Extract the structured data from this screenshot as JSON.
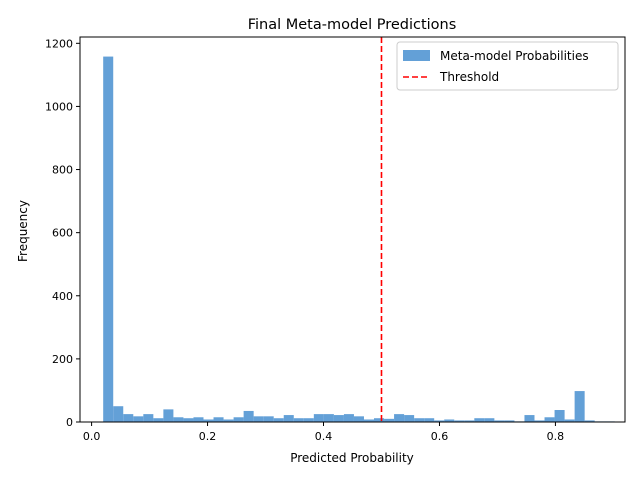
{
  "chart_data": {
    "type": "bar",
    "title": "Final Meta-model Predictions",
    "xlabel": "Predicted Probability",
    "ylabel": "Frequency",
    "xlim": [
      -0.02,
      0.92
    ],
    "ylim": [
      0,
      1220
    ],
    "xticks": [
      0.0,
      0.2,
      0.4,
      0.6,
      0.8
    ],
    "xtick_labels": [
      "0.0",
      "0.2",
      "0.4",
      "0.6",
      "0.8"
    ],
    "yticks": [
      0,
      200,
      400,
      600,
      800,
      1000,
      1200
    ],
    "ytick_labels": [
      "0",
      "200",
      "400",
      "600",
      "800",
      "1000",
      "1200"
    ],
    "grid": false,
    "legend_position": "top-right",
    "bin_start": 0.02,
    "bin_width": 0.0173,
    "series": [
      {
        "name": "Meta-model Probabilities",
        "color": "#5b9bd5",
        "values": [
          1158,
          50,
          25,
          18,
          25,
          12,
          40,
          15,
          12,
          15,
          8,
          15,
          8,
          15,
          35,
          18,
          18,
          12,
          22,
          12,
          12,
          25,
          25,
          22,
          25,
          18,
          8,
          12,
          10,
          25,
          22,
          12,
          12,
          5,
          8,
          5,
          5,
          12,
          12,
          5,
          5,
          2,
          22,
          5,
          15,
          38,
          8,
          98,
          5,
          2,
          2
        ]
      }
    ],
    "threshold": {
      "name": "Threshold",
      "x": 0.5,
      "color": "#ff0000",
      "style": "dashed"
    }
  }
}
